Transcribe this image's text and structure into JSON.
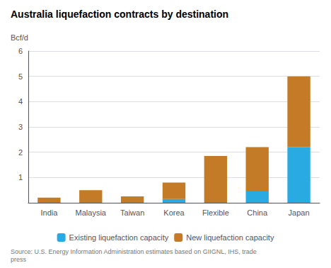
{
  "chart_data": {
    "type": "bar",
    "title": "Australia liquefaction contracts by destination",
    "ylabel": "Bcf/d",
    "categories": [
      "India",
      "Malaysia",
      "Taiwan",
      "Korea",
      "Flexible",
      "China",
      "Japan"
    ],
    "series": [
      {
        "name": "Existing liquefaction capacity",
        "color": "#29ABE2",
        "values": [
          0.0,
          0.0,
          0.0,
          0.15,
          0.0,
          0.45,
          2.2
        ]
      },
      {
        "name": "New liquefaction capacity",
        "color": "#C47B28",
        "values": [
          0.2,
          0.5,
          0.25,
          0.65,
          1.85,
          1.75,
          2.8
        ]
      }
    ],
    "stacked": true,
    "ylim": [
      0,
      6
    ],
    "yticks": [
      1,
      2,
      3,
      4,
      5,
      6
    ],
    "grid": true,
    "legend": "bottom",
    "annotations": [
      "Source: U.S. Energy Information Administration estimates based on GIIGNL, IHS, trade\npress"
    ]
  }
}
